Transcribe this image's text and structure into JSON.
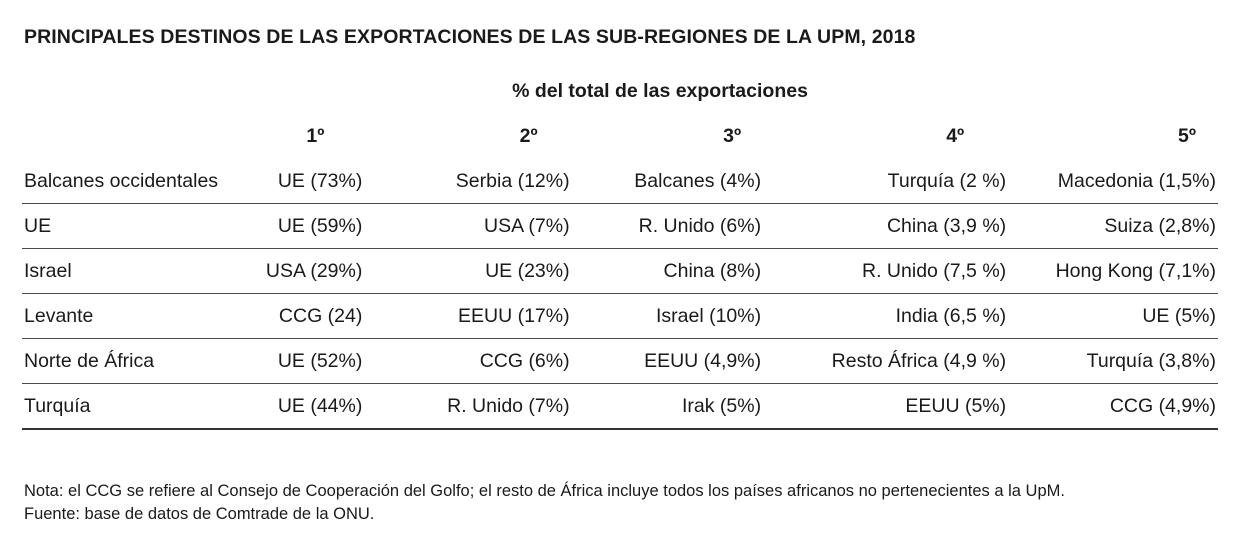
{
  "title": "PRINCIPALES DESTINOS DE LAS EXPORTACIONES DE LAS SUB-REGIONES DE LA UPM, 2018",
  "subtitle": "% del total de las exportaciones",
  "columns": [
    "1º",
    "2º",
    "3º",
    "4º",
    "5º"
  ],
  "rows": [
    {
      "region": "Balcanes occidentales",
      "values": [
        "UE (73%)",
        "Serbia (12%)",
        "Balcanes (4%)",
        "Turquía (2 %)",
        "Macedonia (1,5%)"
      ]
    },
    {
      "region": "UE",
      "values": [
        "UE (59%)",
        "USA (7%)",
        "R. Unido (6%)",
        "China (3,9 %)",
        "Suiza (2,8%)"
      ]
    },
    {
      "region": "Israel",
      "values": [
        "USA (29%)",
        "UE (23%)",
        "China (8%)",
        "R. Unido (7,5 %)",
        "Hong Kong (7,1%)"
      ]
    },
    {
      "region": "Levante",
      "values": [
        "CCG (24)",
        "EEUU (17%)",
        "Israel (10%)",
        "India (6,5 %)",
        "UE (5%)"
      ]
    },
    {
      "region": "Norte de África",
      "values": [
        "UE (52%)",
        "CCG (6%)",
        "EEUU (4,9%)",
        "Resto África (4,9 %)",
        "Turquía (3,8%)"
      ]
    },
    {
      "region": "Turquía",
      "values": [
        "UE (44%)",
        "R. Unido (7%)",
        "Irak (5%)",
        "EEUU (5%)",
        "CCG (4,9%)"
      ]
    }
  ],
  "notes": {
    "nota": "Nota: el CCG se refiere al Consejo de Cooperación del Golfo; el resto de África incluye todos los países africanos no pertenecientes a la UpM.",
    "fuente": "Fuente: base de datos de Comtrade de la ONU."
  }
}
